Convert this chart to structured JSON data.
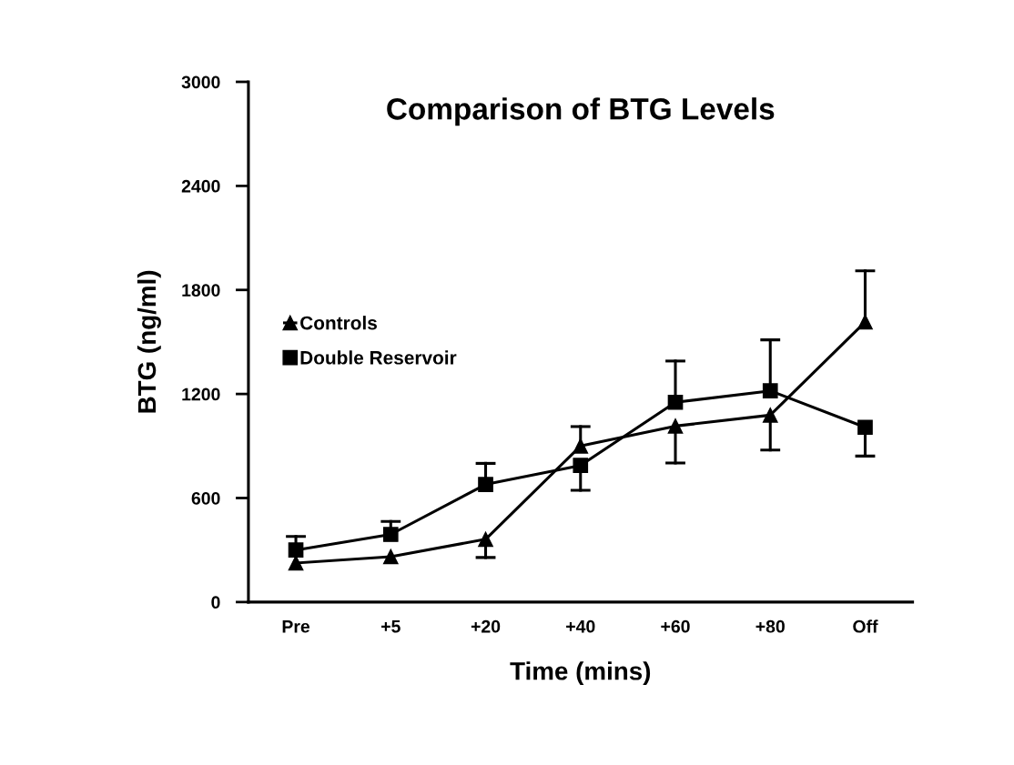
{
  "chart_data": {
    "type": "line",
    "title": "Comparison of BTG Levels",
    "xlabel": "Time (mins)",
    "ylabel": "BTG (ng/ml)",
    "categories": [
      "Pre",
      "+5",
      "+20",
      "+40",
      "+60",
      "+80",
      "Off"
    ],
    "series": [
      {
        "name": "Controls",
        "color": "#000000",
        "marker": "triangle",
        "values": [
          225,
          262,
          362,
          900,
          1015,
          1078,
          1615
        ],
        "errors": [
          null,
          null,
          [
            257,
            362
          ],
          [
            900,
            1012
          ],
          [
            802,
            1015
          ],
          [
            877,
            1078
          ],
          [
            1615,
            1910
          ]
        ]
      },
      {
        "name": "Double Reservoir",
        "color": "#000000",
        "marker": "square",
        "values": [
          300,
          390,
          678,
          788,
          1152,
          1218,
          1008
        ],
        "errors": [
          [
            300,
            378
          ],
          [
            390,
            465
          ],
          [
            678,
            800
          ],
          [
            645,
            788
          ],
          [
            1152,
            1390
          ],
          [
            1218,
            1512
          ],
          [
            842,
            1008
          ]
        ]
      }
    ],
    "ylim": [
      0,
      3000
    ],
    "yticks": [
      0,
      600,
      1200,
      1800,
      2400,
      3000
    ],
    "grid": false,
    "legend": "left",
    "line_style": "solid"
  }
}
